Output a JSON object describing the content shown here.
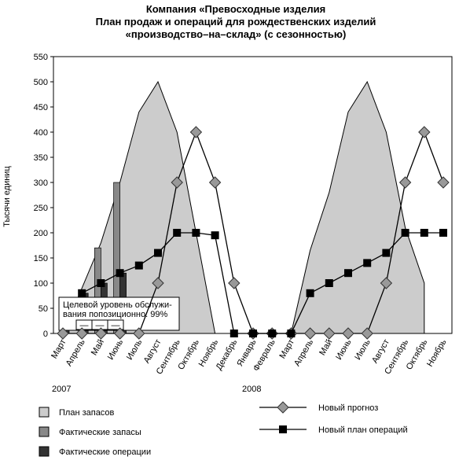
{
  "chart_data": {
    "type": "combo",
    "title": [
      "Компания «Превосходные изделия",
      "План продаж и операций для рождественских изделий",
      "«производство–на–склад» (с сезонностью)"
    ],
    "y_label": "Тысячи единиц",
    "categories": [
      "Март",
      "Апрель",
      "Май",
      "Июнь",
      "Июль",
      "Август",
      "Сентябрь",
      "Октябрь",
      "Ноябрь",
      "Декабрь",
      "Январь",
      "Февраль",
      "Март",
      "Апрель",
      "Май",
      "Июнь",
      "Июль",
      "Август",
      "Сентябрь",
      "Октябрь",
      "Ноябрь"
    ],
    "year_labels": [
      "2007",
      "2008"
    ],
    "ylim": [
      0,
      550
    ],
    "yticks": [
      0,
      50,
      100,
      150,
      200,
      250,
      300,
      350,
      400,
      450,
      500,
      550
    ],
    "series": [
      {
        "name": "План запасов",
        "kind": "area",
        "color": "#cccccc",
        "values": [
          0,
          90,
          180,
          300,
          440,
          500,
          400,
          200,
          0,
          0,
          0,
          0,
          0,
          165,
          280,
          440,
          500,
          400,
          210,
          100,
          null
        ]
      },
      {
        "name": "Фактические запасы",
        "kind": "bar",
        "color": "#888888",
        "values": [
          null,
          null,
          170,
          300,
          null,
          null,
          null,
          null,
          null,
          null,
          null,
          null,
          null,
          null,
          null,
          null,
          null,
          null,
          null,
          null,
          null
        ]
      },
      {
        "name": "Фактические операции",
        "kind": "bar",
        "color": "#333333",
        "values": [
          10,
          80,
          100,
          120,
          null,
          null,
          null,
          null,
          null,
          null,
          null,
          null,
          null,
          null,
          null,
          null,
          null,
          null,
          null,
          null,
          null
        ]
      },
      {
        "name": "Новый прогноз",
        "kind": "line",
        "marker": "diamond",
        "color": "#999999",
        "values": [
          0,
          0,
          0,
          0,
          0,
          100,
          300,
          400,
          300,
          100,
          0,
          0,
          0,
          0,
          0,
          0,
          0,
          100,
          300,
          400,
          300
        ]
      },
      {
        "name": "Новый план операций",
        "kind": "line",
        "marker": "square",
        "color": "#000000",
        "values": [
          null,
          80,
          100,
          120,
          135,
          160,
          200,
          200,
          195,
          0,
          0,
          0,
          0,
          80,
          100,
          120,
          140,
          160,
          200,
          200,
          200
        ]
      }
    ],
    "annotation": {
      "lines": [
        "Целевой уровень обслужи-",
        "вания попозиционно: 99%"
      ],
      "cells": [
        "—",
        "—",
        "—"
      ]
    }
  }
}
